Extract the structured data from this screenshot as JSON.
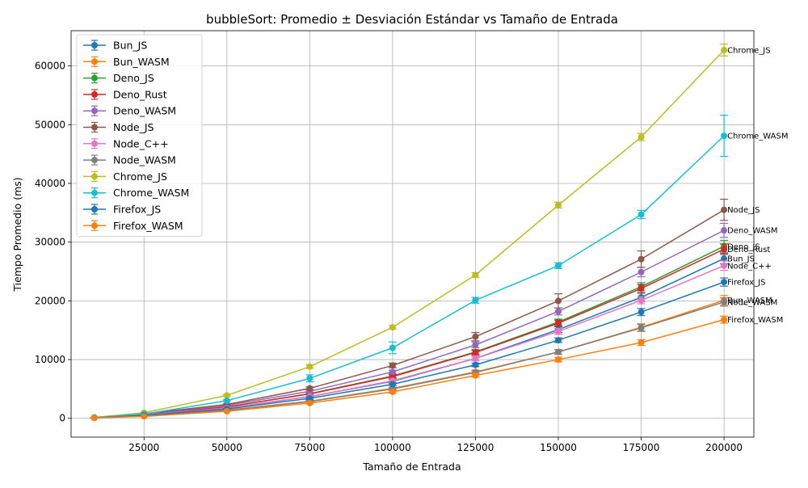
{
  "chart_data": {
    "type": "line",
    "title": "bubbleSort: Promedio ± Desviación Estándar vs Tamaño de Entrada",
    "xlabel": "Tamaño de Entrada",
    "ylabel": "Tiempo Promedio (ms)",
    "x": [
      10000,
      25000,
      50000,
      75000,
      100000,
      125000,
      150000,
      175000,
      200000
    ],
    "xlim": [
      3000,
      209000
    ],
    "ylim": [
      -3200,
      66000
    ],
    "xticks": [
      25000,
      50000,
      75000,
      100000,
      125000,
      150000,
      175000,
      200000
    ],
    "yticks": [
      0,
      10000,
      20000,
      30000,
      40000,
      50000,
      60000
    ],
    "grid": true,
    "legend_position": "top-left",
    "error_bars": true,
    "series": [
      {
        "name": "Bun_JS",
        "color": "#1f77b4",
        "values": [
          90,
          580,
          1750,
          3700,
          6300,
          10200,
          15100,
          20600,
          27200
        ],
        "errors": [
          20,
          50,
          90,
          200,
          300,
          400,
          500,
          700,
          900
        ]
      },
      {
        "name": "Bun_WASM",
        "color": "#ff7f0e",
        "values": [
          80,
          380,
          1400,
          2900,
          5100,
          7900,
          11300,
          15500,
          20100
        ],
        "errors": [
          20,
          40,
          80,
          150,
          200,
          300,
          400,
          600,
          800
        ]
      },
      {
        "name": "Deno_JS",
        "color": "#2ca02c",
        "values": [
          95,
          600,
          1950,
          4200,
          7200,
          11300,
          16400,
          22400,
          29300
        ],
        "errors": [
          20,
          50,
          90,
          200,
          300,
          400,
          500,
          700,
          1000
        ]
      },
      {
        "name": "Deno_Rust",
        "color": "#d62728",
        "values": [
          95,
          600,
          1950,
          4150,
          7100,
          11200,
          16200,
          22100,
          28800
        ],
        "errors": [
          20,
          50,
          90,
          200,
          300,
          400,
          500,
          700,
          900
        ]
      },
      {
        "name": "Deno_WASM",
        "color": "#9467bd",
        "values": [
          110,
          700,
          2200,
          4600,
          7900,
          12500,
          18200,
          24900,
          32000
        ],
        "errors": [
          20,
          60,
          100,
          200,
          300,
          500,
          600,
          800,
          1200
        ]
      },
      {
        "name": "Node_JS",
        "color": "#8c564b",
        "values": [
          120,
          780,
          2350,
          5100,
          9000,
          13900,
          20000,
          27100,
          35500
        ],
        "errors": [
          20,
          60,
          120,
          250,
          400,
          700,
          1200,
          1400,
          1800
        ]
      },
      {
        "name": "Node_C++",
        "color": "#e377c2",
        "values": [
          90,
          560,
          1750,
          3700,
          6400,
          10200,
          14800,
          20100,
          26000
        ],
        "errors": [
          20,
          50,
          90,
          200,
          300,
          400,
          500,
          600,
          800
        ]
      },
      {
        "name": "Node_WASM",
        "color": "#7f7f7f",
        "values": [
          80,
          370,
          1350,
          2850,
          5000,
          7800,
          11300,
          15400,
          19800
        ],
        "errors": [
          20,
          40,
          80,
          150,
          200,
          300,
          400,
          600,
          700
        ]
      },
      {
        "name": "Chrome_JS",
        "color": "#bcbd22",
        "values": [
          150,
          950,
          3900,
          8800,
          15500,
          24400,
          36300,
          47900,
          62700
        ],
        "errors": [
          20,
          60,
          150,
          300,
          300,
          400,
          500,
          600,
          1000
        ]
      },
      {
        "name": "Chrome_WASM",
        "color": "#17becf",
        "values": [
          130,
          720,
          3000,
          6800,
          12000,
          20100,
          26000,
          34700,
          48100
        ],
        "errors": [
          20,
          60,
          150,
          600,
          1000,
          500,
          500,
          700,
          3500
        ]
      },
      {
        "name": "Firefox_JS",
        "color": "#1f77b4",
        "values": [
          85,
          500,
          1600,
          3400,
          5800,
          9100,
          13300,
          18100,
          23200
        ],
        "errors": [
          20,
          40,
          80,
          200,
          200,
          300,
          400,
          600,
          700
        ]
      },
      {
        "name": "Firefox_WASM",
        "color": "#ff7f0e",
        "values": [
          70,
          330,
          1200,
          2600,
          4500,
          7300,
          10000,
          12900,
          16800
        ],
        "errors": [
          20,
          30,
          70,
          150,
          200,
          300,
          400,
          500,
          600
        ]
      }
    ]
  }
}
